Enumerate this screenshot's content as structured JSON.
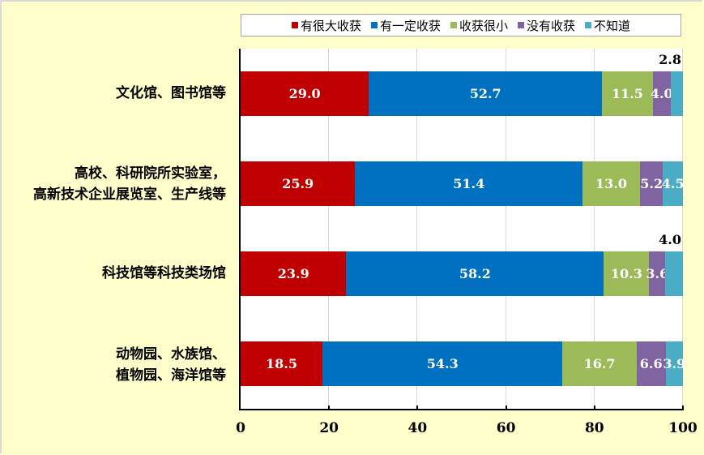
{
  "chart_data": {
    "type": "bar",
    "orientation": "horizontal",
    "stacked": true,
    "title": "",
    "xlabel": "",
    "ylabel": "",
    "xlim": [
      0,
      100
    ],
    "x_ticks": [
      "0",
      "20",
      "40",
      "60",
      "80",
      "100"
    ],
    "grid": true,
    "legend_position": "top",
    "categories": [
      "文化馆、图书馆等",
      "高校、科研院所实验室，高新技术企业展览室、生产线等",
      "科技馆等科技类场馆",
      "动物园、水族馆、植物园、海洋馆等"
    ],
    "series": [
      {
        "name": "有很大收获",
        "color": "#c00000",
        "values": [
          29.0,
          25.9,
          23.9,
          18.5
        ]
      },
      {
        "name": "有一定收获",
        "color": "#0070c0",
        "values": [
          52.7,
          51.4,
          58.2,
          54.3
        ]
      },
      {
        "name": "收获很小",
        "color": "#9bbb59",
        "values": [
          11.5,
          13.0,
          10.3,
          16.7
        ]
      },
      {
        "name": "没有收获",
        "color": "#8064a2",
        "values": [
          4.0,
          5.2,
          3.6,
          6.6
        ]
      },
      {
        "name": "不知道",
        "color": "#4bacc6",
        "values": [
          2.8,
          4.5,
          4.0,
          3.9
        ]
      }
    ]
  },
  "legend": [
    {
      "label": "有很大收获",
      "color": "#c00000"
    },
    {
      "label": "有一定收获",
      "color": "#0070c0"
    },
    {
      "label": "收获很小",
      "color": "#9bbb59"
    },
    {
      "label": "没有收获",
      "color": "#8064a2"
    },
    {
      "label": "不知道",
      "color": "#4bacc6"
    }
  ],
  "category_labels": [
    {
      "lines": [
        "文化馆、图书馆等"
      ]
    },
    {
      "lines": [
        "高校、科研院所实验室，",
        "高新技术企业展览室、生产线等"
      ]
    },
    {
      "lines": [
        "科技馆等科技类场馆"
      ]
    },
    {
      "lines": [
        "动物园、水族馆、",
        "植物园、海洋馆等"
      ]
    }
  ],
  "bars": [
    {
      "segments": [
        {
          "v": 29.0,
          "label": "29.0"
        },
        {
          "v": 52.7,
          "label": "52.7"
        },
        {
          "v": 11.5,
          "label": "11.5"
        },
        {
          "v": 4.0,
          "label": "4.0"
        },
        {
          "v": 2.8,
          "label": ""
        }
      ],
      "outside_label": "2.8"
    },
    {
      "segments": [
        {
          "v": 25.9,
          "label": "25.9"
        },
        {
          "v": 51.4,
          "label": "51.4"
        },
        {
          "v": 13.0,
          "label": "13.0"
        },
        {
          "v": 5.2,
          "label": "5.2"
        },
        {
          "v": 4.5,
          "label": "4.5"
        }
      ],
      "outside_label": ""
    },
    {
      "segments": [
        {
          "v": 23.9,
          "label": "23.9"
        },
        {
          "v": 58.2,
          "label": "58.2"
        },
        {
          "v": 10.3,
          "label": "10.3"
        },
        {
          "v": 3.6,
          "label": "3.6"
        },
        {
          "v": 4.0,
          "label": ""
        }
      ],
      "outside_label": "4.0"
    },
    {
      "segments": [
        {
          "v": 18.5,
          "label": "18.5"
        },
        {
          "v": 54.3,
          "label": "54.3"
        },
        {
          "v": 16.7,
          "label": "16.7"
        },
        {
          "v": 6.6,
          "label": "6.6"
        },
        {
          "v": 3.9,
          "label": "3.9"
        }
      ],
      "outside_label": ""
    }
  ],
  "x_axis": {
    "ticks": [
      "0",
      "20",
      "40",
      "60",
      "80",
      "100"
    ]
  }
}
